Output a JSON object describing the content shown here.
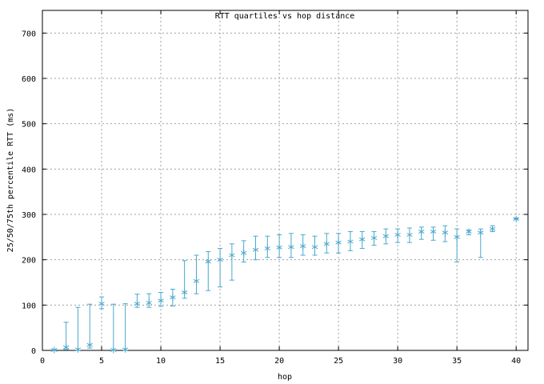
{
  "chart_data": {
    "type": "scatter",
    "title": "RTT quartiles vs hop distance",
    "xlabel": "hop",
    "ylabel": "25/50/75th percentile RTT (ms)",
    "xlim": [
      0,
      41
    ],
    "ylim": [
      0,
      750
    ],
    "xticks": [
      0,
      5,
      10,
      15,
      20,
      25,
      30,
      35,
      40
    ],
    "yticks": [
      0,
      100,
      200,
      300,
      400,
      500,
      600,
      700
    ],
    "grid": true,
    "legend": "none",
    "series_color": "#4aa8cc",
    "series": [
      {
        "points": [
          {
            "x": 1,
            "low": 0,
            "median": 1,
            "high": 2
          },
          {
            "x": 2,
            "low": 2,
            "median": 7,
            "high": 62
          },
          {
            "x": 3,
            "low": 0,
            "median": 2,
            "high": 95
          },
          {
            "x": 4,
            "low": 5,
            "median": 12,
            "high": 102
          },
          {
            "x": 5,
            "low": 92,
            "median": 103,
            "high": 118
          },
          {
            "x": 6,
            "low": 0,
            "median": 1,
            "high": 102
          },
          {
            "x": 7,
            "low": 0,
            "median": 2,
            "high": 103
          },
          {
            "x": 8,
            "low": 95,
            "median": 103,
            "high": 124
          },
          {
            "x": 9,
            "low": 95,
            "median": 105,
            "high": 125
          },
          {
            "x": 10,
            "low": 97,
            "median": 110,
            "high": 128
          },
          {
            "x": 11,
            "low": 98,
            "median": 117,
            "high": 135
          },
          {
            "x": 12,
            "low": 115,
            "median": 128,
            "high": 198
          },
          {
            "x": 13,
            "low": 125,
            "median": 153,
            "high": 210
          },
          {
            "x": 14,
            "low": 132,
            "median": 196,
            "high": 218
          },
          {
            "x": 15,
            "low": 140,
            "median": 200,
            "high": 225
          },
          {
            "x": 16,
            "low": 155,
            "median": 210,
            "high": 235
          },
          {
            "x": 17,
            "low": 195,
            "median": 215,
            "high": 242
          },
          {
            "x": 18,
            "low": 200,
            "median": 222,
            "high": 252
          },
          {
            "x": 19,
            "low": 205,
            "median": 225,
            "high": 252
          },
          {
            "x": 20,
            "low": 205,
            "median": 227,
            "high": 255
          },
          {
            "x": 21,
            "low": 205,
            "median": 228,
            "high": 258
          },
          {
            "x": 22,
            "low": 210,
            "median": 230,
            "high": 255
          },
          {
            "x": 23,
            "low": 210,
            "median": 228,
            "high": 252
          },
          {
            "x": 24,
            "low": 215,
            "median": 235,
            "high": 258
          },
          {
            "x": 25,
            "low": 215,
            "median": 238,
            "high": 258
          },
          {
            "x": 26,
            "low": 220,
            "median": 240,
            "high": 262
          },
          {
            "x": 27,
            "low": 225,
            "median": 245,
            "high": 262
          },
          {
            "x": 28,
            "low": 232,
            "median": 248,
            "high": 262
          },
          {
            "x": 29,
            "low": 235,
            "median": 252,
            "high": 268
          },
          {
            "x": 30,
            "low": 238,
            "median": 255,
            "high": 268
          },
          {
            "x": 31,
            "low": 238,
            "median": 255,
            "high": 270
          },
          {
            "x": 32,
            "low": 245,
            "median": 262,
            "high": 272
          },
          {
            "x": 33,
            "low": 243,
            "median": 262,
            "high": 272
          },
          {
            "x": 34,
            "low": 240,
            "median": 260,
            "high": 275
          },
          {
            "x": 35,
            "low": 195,
            "median": 250,
            "high": 268
          },
          {
            "x": 36,
            "low": 255,
            "median": 262,
            "high": 265
          },
          {
            "x": 37,
            "low": 205,
            "median": 260,
            "high": 268
          },
          {
            "x": 38,
            "low": 262,
            "median": 268,
            "high": 275
          },
          {
            "x": 40,
            "low": 290,
            "median": 290,
            "high": 292
          }
        ]
      }
    ]
  }
}
